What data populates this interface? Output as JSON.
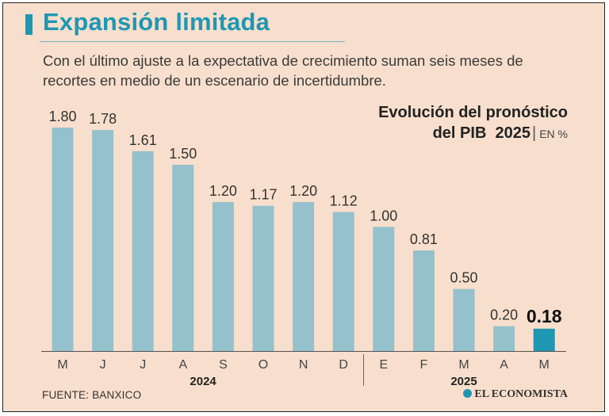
{
  "header": {
    "title": "Expansión limitada",
    "subtitle": "Con el último ajuste a la expectativa de crecimiento suman seis meses de recortes en medio de un escenario de incertidumbre."
  },
  "chart_title": {
    "line1": "Evolución del pronóstico",
    "line2": "del PIB  2025",
    "unit": "EN %"
  },
  "footer": {
    "source": "FUENTE: BANXICO",
    "logo": "EL ECONOMISTA"
  },
  "colors": {
    "bar": "#94c1cc",
    "highlight_bar": "#1f97b2",
    "background": "#f8dfcd",
    "title": "#1f97b2"
  },
  "chart_data": {
    "type": "bar",
    "title": "Evolución del pronóstico del PIB 2025",
    "ylabel": "",
    "xlabel": "",
    "ylim": [
      0,
      1.8
    ],
    "categories": [
      "M",
      "J",
      "J",
      "A",
      "S",
      "O",
      "N",
      "D",
      "E",
      "F",
      "M",
      "A",
      "M"
    ],
    "values": [
      1.8,
      1.78,
      1.61,
      1.5,
      1.2,
      1.17,
      1.2,
      1.12,
      1.0,
      0.81,
      0.5,
      0.2,
      0.18
    ],
    "value_labels": [
      "1.80",
      "1.78",
      "1.61",
      "1.50",
      "1.20",
      "1.17",
      "1.20",
      "1.12",
      "1.00",
      "0.81",
      "0.50",
      "0.20",
      "0.18"
    ],
    "highlight_index": 12,
    "year_groups": [
      {
        "label": "2024",
        "start": 0,
        "end": 7
      },
      {
        "label": "2025",
        "start": 8,
        "end": 12
      }
    ]
  }
}
